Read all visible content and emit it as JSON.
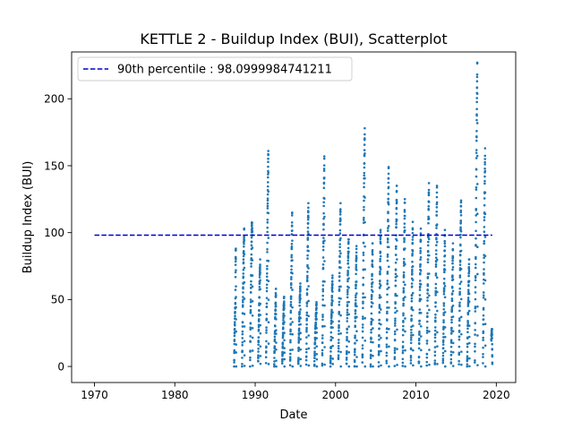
{
  "chart_data": {
    "type": "scatter",
    "title": "KETTLE 2 - Buildup Index (BUI), Scatterplot",
    "xlabel": "Date",
    "ylabel": "Buildup Index (BUI)",
    "xlim": [
      "1967-03-01",
      "2022-06-01"
    ],
    "ylim": [
      -12,
      235
    ],
    "x_ticks": [
      1970,
      1980,
      1990,
      2000,
      2010,
      2020
    ],
    "y_ticks": [
      0,
      50,
      100,
      150,
      200
    ],
    "grid": false,
    "legend_position": "top-left",
    "point_color": "#1f77b4",
    "reference_line": {
      "label": "90th percentile : 98.0999984741211",
      "value": 98.0999984741211,
      "x_range": [
        "1970-01-01",
        "2019-07-01"
      ],
      "color": "#0000cc",
      "style": "dashed"
    },
    "series": [
      {
        "seasons": [
          {
            "year": 1987,
            "max": 88,
            "points": [
              [
                "1987-05-20",
                0
              ],
              [
                "1987-06-10",
                24
              ],
              [
                "1987-06-20",
                32
              ],
              [
                "1987-07-01",
                40
              ],
              [
                "1987-07-15",
                45
              ],
              [
                "1987-07-25",
                78
              ],
              [
                "1987-08-05",
                88
              ]
            ]
          },
          {
            "year": 1988,
            "max": 103,
            "points": [
              [
                "1988-05-15",
                0
              ],
              [
                "1988-06-01",
                22
              ],
              [
                "1988-06-20",
                45
              ],
              [
                "1988-07-10",
                68
              ],
              [
                "1988-07-25",
                85
              ],
              [
                "1988-08-10",
                95
              ],
              [
                "1988-08-20",
                103
              ]
            ]
          },
          {
            "year": 1989,
            "max": 108,
            "points": [
              [
                "1989-05-15",
                0
              ],
              [
                "1989-06-01",
                30
              ],
              [
                "1989-06-20",
                55
              ],
              [
                "1989-07-15",
                86
              ],
              [
                "1989-08-05",
                108
              ],
              [
                "1989-08-25",
                98
              ]
            ]
          },
          {
            "year": 1990,
            "max": 80,
            "points": [
              [
                "1990-05-15",
                2
              ],
              [
                "1990-06-05",
                22
              ],
              [
                "1990-06-25",
                40
              ],
              [
                "1990-07-20",
                61
              ],
              [
                "1990-08-15",
                80
              ]
            ]
          },
          {
            "year": 1991,
            "max": 161,
            "points": [
              [
                "1991-05-10",
                3
              ],
              [
                "1991-06-01",
                35
              ],
              [
                "1991-06-25",
                70
              ],
              [
                "1991-07-15",
                110
              ],
              [
                "1991-08-05",
                140
              ],
              [
                "1991-08-20",
                161
              ]
            ]
          },
          {
            "year": 1992,
            "max": 58,
            "points": [
              [
                "1992-05-15",
                0
              ],
              [
                "1992-06-10",
                20
              ],
              [
                "1992-07-05",
                40
              ],
              [
                "1992-08-01",
                58
              ]
            ]
          },
          {
            "year": 1993,
            "max": 52,
            "points": [
              [
                "1993-05-15",
                1
              ],
              [
                "1993-06-15",
                22
              ],
              [
                "1993-07-15",
                40
              ],
              [
                "1993-08-10",
                52
              ]
            ]
          },
          {
            "year": 1994,
            "max": 115,
            "points": [
              [
                "1994-05-10",
                2
              ],
              [
                "1994-06-01",
                30
              ],
              [
                "1994-06-25",
                60
              ],
              [
                "1994-07-20",
                90
              ],
              [
                "1994-08-10",
                115
              ]
            ]
          },
          {
            "year": 1995,
            "max": 62,
            "points": [
              [
                "1995-05-15",
                0
              ],
              [
                "1995-06-15",
                25
              ],
              [
                "1995-07-15",
                45
              ],
              [
                "1995-08-15",
                62
              ]
            ]
          },
          {
            "year": 1996,
            "max": 122,
            "points": [
              [
                "1996-05-10",
                1
              ],
              [
                "1996-06-05",
                38
              ],
              [
                "1996-07-01",
                70
              ],
              [
                "1996-07-25",
                100
              ],
              [
                "1996-08-15",
                122
              ]
            ]
          },
          {
            "year": 1997,
            "max": 48,
            "points": [
              [
                "1997-05-15",
                0
              ],
              [
                "1997-06-15",
                20
              ],
              [
                "1997-07-20",
                35
              ],
              [
                "1997-08-20",
                48
              ]
            ]
          },
          {
            "year": 1998,
            "max": 157,
            "points": [
              [
                "1998-05-05",
                2
              ],
              [
                "1998-06-01",
                40
              ],
              [
                "1998-06-25",
                85
              ],
              [
                "1998-07-20",
                125
              ],
              [
                "1998-08-10",
                157
              ]
            ]
          },
          {
            "year": 1999,
            "max": 68,
            "points": [
              [
                "1999-05-15",
                0
              ],
              [
                "1999-06-15",
                25
              ],
              [
                "1999-07-15",
                48
              ],
              [
                "1999-08-15",
                68
              ]
            ]
          },
          {
            "year": 2000,
            "max": 122,
            "points": [
              [
                "2000-05-10",
                3
              ],
              [
                "2000-06-05",
                35
              ],
              [
                "2000-07-01",
                70
              ],
              [
                "2000-07-25",
                100
              ],
              [
                "2000-08-15",
                122
              ]
            ]
          },
          {
            "year": 2001,
            "max": 95,
            "points": [
              [
                "2001-05-15",
                1
              ],
              [
                "2001-06-10",
                30
              ],
              [
                "2001-07-05",
                60
              ],
              [
                "2001-08-01",
                85
              ],
              [
                "2001-08-20",
                95
              ]
            ]
          },
          {
            "year": 2002,
            "max": 90,
            "points": [
              [
                "2002-05-15",
                0
              ],
              [
                "2002-06-10",
                28
              ],
              [
                "2002-07-10",
                58
              ],
              [
                "2002-08-10",
                90
              ]
            ]
          },
          {
            "year": 2003,
            "max": 178,
            "points": [
              [
                "2003-05-05",
                2
              ],
              [
                "2003-06-01",
                45
              ],
              [
                "2003-06-25",
                90
              ],
              [
                "2003-07-20",
                135
              ],
              [
                "2003-08-10",
                165
              ],
              [
                "2003-08-20",
                178
              ]
            ]
          },
          {
            "year": 2004,
            "max": 92,
            "points": [
              [
                "2004-05-15",
                0
              ],
              [
                "2004-06-10",
                30
              ],
              [
                "2004-07-10",
                60
              ],
              [
                "2004-08-10",
                92
              ]
            ]
          },
          {
            "year": 2005,
            "max": 102,
            "points": [
              [
                "2005-05-15",
                1
              ],
              [
                "2005-06-10",
                32
              ],
              [
                "2005-07-10",
                65
              ],
              [
                "2005-08-10",
                102
              ]
            ]
          },
          {
            "year": 2006,
            "max": 149,
            "points": [
              [
                "2006-05-05",
                2
              ],
              [
                "2006-06-01",
                40
              ],
              [
                "2006-06-25",
                80
              ],
              [
                "2006-07-20",
                120
              ],
              [
                "2006-08-10",
                149
              ]
            ]
          },
          {
            "year": 2007,
            "max": 135,
            "points": [
              [
                "2007-05-10",
                1
              ],
              [
                "2007-06-05",
                38
              ],
              [
                "2007-07-01",
                75
              ],
              [
                "2007-07-25",
                110
              ],
              [
                "2007-08-15",
                135
              ]
            ]
          },
          {
            "year": 2008,
            "max": 125,
            "points": [
              [
                "2008-05-10",
                0
              ],
              [
                "2008-06-05",
                35
              ],
              [
                "2008-07-01",
                70
              ],
              [
                "2008-07-25",
                100
              ],
              [
                "2008-08-15",
                125
              ]
            ]
          },
          {
            "year": 2009,
            "max": 108,
            "points": [
              [
                "2009-05-15",
                2
              ],
              [
                "2009-06-10",
                32
              ],
              [
                "2009-07-10",
                66
              ],
              [
                "2009-08-10",
                108
              ]
            ]
          },
          {
            "year": 2010,
            "max": 103,
            "points": [
              [
                "2010-05-15",
                1
              ],
              [
                "2010-06-10",
                30
              ],
              [
                "2010-07-10",
                65
              ],
              [
                "2010-08-10",
                103
              ]
            ]
          },
          {
            "year": 2011,
            "max": 137,
            "points": [
              [
                "2011-05-10",
                0
              ],
              [
                "2011-06-05",
                38
              ],
              [
                "2011-07-01",
                75
              ],
              [
                "2011-07-25",
                110
              ],
              [
                "2011-08-15",
                137
              ]
            ]
          },
          {
            "year": 2012,
            "max": 135,
            "points": [
              [
                "2012-05-10",
                2
              ],
              [
                "2012-06-05",
                36
              ],
              [
                "2012-07-01",
                72
              ],
              [
                "2012-07-25",
                105
              ],
              [
                "2012-08-15",
                135
              ]
            ]
          },
          {
            "year": 2013,
            "max": 102,
            "points": [
              [
                "2013-05-15",
                0
              ],
              [
                "2013-06-10",
                30
              ],
              [
                "2013-07-10",
                62
              ],
              [
                "2013-08-10",
                102
              ]
            ]
          },
          {
            "year": 2014,
            "max": 92,
            "points": [
              [
                "2014-05-15",
                1
              ],
              [
                "2014-06-10",
                28
              ],
              [
                "2014-07-10",
                58
              ],
              [
                "2014-08-10",
                92
              ]
            ]
          },
          {
            "year": 2015,
            "max": 124,
            "points": [
              [
                "2015-05-10",
                2
              ],
              [
                "2015-06-05",
                35
              ],
              [
                "2015-07-01",
                70
              ],
              [
                "2015-07-25",
                100
              ],
              [
                "2015-08-15",
                124
              ]
            ]
          },
          {
            "year": 2016,
            "max": 80,
            "points": [
              [
                "2016-05-15",
                0
              ],
              [
                "2016-06-15",
                28
              ],
              [
                "2016-07-15",
                55
              ],
              [
                "2016-08-15",
                80
              ]
            ]
          },
          {
            "year": 2017,
            "max": 227,
            "points": [
              [
                "2017-05-01",
                3
              ],
              [
                "2017-05-25",
                50
              ],
              [
                "2017-06-20",
                100
              ],
              [
                "2017-07-10",
                150
              ],
              [
                "2017-07-30",
                190
              ],
              [
                "2017-08-20",
                227
              ]
            ]
          },
          {
            "year": 2018,
            "max": 163,
            "points": [
              [
                "2018-05-05",
                5
              ],
              [
                "2018-06-01",
                45
              ],
              [
                "2018-06-25",
                90
              ],
              [
                "2018-07-20",
                130
              ],
              [
                "2018-08-10",
                163
              ]
            ]
          },
          {
            "year": 2019,
            "max": 28,
            "points": [
              [
                "2019-05-20",
                20
              ],
              [
                "2019-06-05",
                25
              ],
              [
                "2019-06-20",
                28
              ]
            ]
          }
        ]
      }
    ]
  }
}
